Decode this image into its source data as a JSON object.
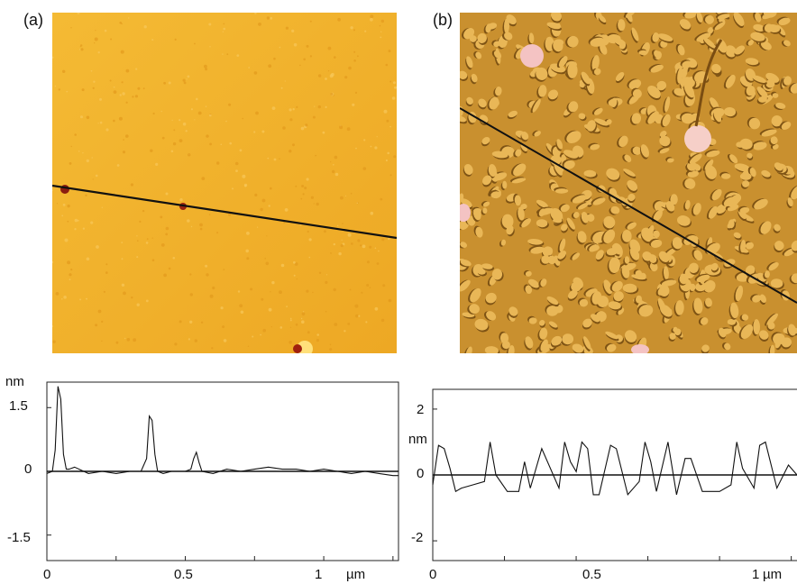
{
  "panels": [
    {
      "label": "(a)",
      "image": {
        "kind": "afm-topography-smooth",
        "base_color": "#F2B22A",
        "line_color": "#111111"
      },
      "profile": {
        "unit_y": "nm",
        "unit_x": "µm",
        "y_ticks": [
          "1.5",
          "0",
          "-1.5"
        ],
        "x_ticks": [
          "0",
          "0.5",
          "1"
        ]
      }
    },
    {
      "label": "(b)",
      "image": {
        "kind": "afm-topography-islands",
        "base_color": "#C98A2E",
        "line_color": "#111111"
      },
      "profile": {
        "unit_y": "nm",
        "unit_x": "µm",
        "y_ticks": [
          "2",
          "0",
          "-2"
        ],
        "x_ticks": [
          "0",
          "0.5",
          "1"
        ]
      }
    }
  ],
  "chart_data": [
    {
      "type": "line",
      "xlabel": "µm",
      "ylabel": "nm",
      "xlim": [
        0,
        1.27
      ],
      "ylim": [
        -2.1,
        2.1
      ],
      "x": [
        0,
        0.02,
        0.03,
        0.04,
        0.05,
        0.06,
        0.07,
        0.08,
        0.1,
        0.15,
        0.2,
        0.25,
        0.3,
        0.34,
        0.36,
        0.37,
        0.38,
        0.39,
        0.4,
        0.42,
        0.45,
        0.5,
        0.52,
        0.53,
        0.54,
        0.55,
        0.56,
        0.6,
        0.65,
        0.7,
        0.75,
        0.8,
        0.85,
        0.9,
        0.95,
        1.0,
        1.05,
        1.1,
        1.15,
        1.2,
        1.25,
        1.27
      ],
      "series": [
        {
          "values": [
            -0.05,
            0.0,
            0.5,
            2.0,
            1.7,
            0.4,
            0.05,
            0.05,
            0.1,
            -0.05,
            0.0,
            -0.05,
            0.0,
            0.0,
            0.3,
            1.3,
            1.2,
            0.4,
            0.0,
            -0.05,
            0.0,
            0.0,
            0.05,
            0.3,
            0.45,
            0.2,
            0.0,
            -0.05,
            0.05,
            0.0,
            0.05,
            0.1,
            0.05,
            0.05,
            0.0,
            0.05,
            0.0,
            -0.05,
            0.0,
            -0.05,
            -0.1,
            -0.1
          ]
        }
      ]
    },
    {
      "type": "line",
      "xlabel": "µm",
      "ylabel": "nm",
      "xlim": [
        0,
        1.27
      ],
      "ylim": [
        -2.6,
        2.6
      ],
      "x": [
        0.0,
        0.02,
        0.04,
        0.06,
        0.08,
        0.1,
        0.14,
        0.18,
        0.2,
        0.22,
        0.26,
        0.3,
        0.32,
        0.34,
        0.38,
        0.44,
        0.46,
        0.48,
        0.5,
        0.52,
        0.54,
        0.56,
        0.58,
        0.62,
        0.64,
        0.68,
        0.72,
        0.74,
        0.76,
        0.78,
        0.82,
        0.85,
        0.88,
        0.9,
        0.94,
        1.0,
        1.04,
        1.06,
        1.08,
        1.12,
        1.14,
        1.16,
        1.2,
        1.24,
        1.27
      ],
      "series": [
        {
          "values": [
            -0.3,
            0.9,
            0.8,
            0.2,
            -0.5,
            -0.4,
            -0.3,
            -0.2,
            1.0,
            0.0,
            -0.5,
            -0.5,
            0.4,
            -0.4,
            0.8,
            -0.4,
            1.0,
            0.4,
            0.1,
            1.0,
            0.8,
            -0.6,
            -0.6,
            0.9,
            0.8,
            -0.6,
            -0.2,
            1.0,
            0.4,
            -0.5,
            1.0,
            -0.6,
            0.5,
            0.5,
            -0.5,
            -0.5,
            -0.3,
            1.0,
            0.2,
            -0.4,
            0.9,
            1.0,
            -0.4,
            0.3,
            0.0
          ]
        }
      ]
    }
  ]
}
